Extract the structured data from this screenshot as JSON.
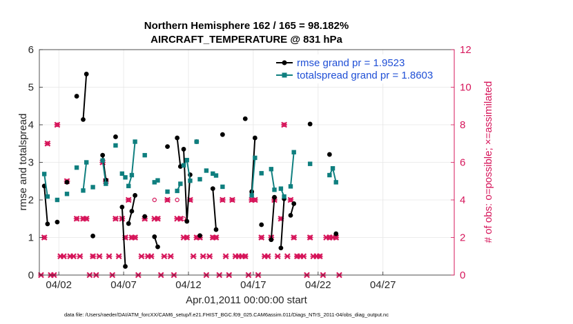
{
  "chart_data": {
    "type": "line",
    "title_line1": "Northern Hemisphere 162 / 165 = 98.182%",
    "title_line2": "AIRCRAFT_TEMPERATURE @ 831 hPa",
    "ylabel_left": "rmse and totalspread",
    "ylabel_right": "# of obs: o=possible; ×=assimilated",
    "xlabel": "Apr.01,2011 00:00:00 start",
    "footer": "data file: /Users/raeder/DAI/ATM_forcXX/CAM6_setup/f.e21.FHIST_BGC.f09_025.CAM6assim.011/Diags_NTrS_2011-04/obs_diag_output.nc",
    "xlim": [
      0.5,
      32.5
    ],
    "ylim_left": [
      0,
      6
    ],
    "ylim_right": [
      0,
      12
    ],
    "x_ticks": [
      {
        "x": 2,
        "label": "04/02"
      },
      {
        "x": 7,
        "label": "04/07"
      },
      {
        "x": 12,
        "label": "04/12"
      },
      {
        "x": 17,
        "label": "04/17"
      },
      {
        "x": 22,
        "label": "04/22"
      },
      {
        "x": 27,
        "label": "04/27"
      }
    ],
    "y_ticks_left": [
      0,
      1,
      2,
      3,
      4,
      5,
      6
    ],
    "y_ticks_right": [
      0,
      2,
      4,
      6,
      8,
      10,
      12
    ],
    "grid": true,
    "legend_position": "top-right",
    "colors": {
      "rmse": "#000000",
      "spread": "#0f7f7f",
      "obs": "#d6155a",
      "axis_right": "#d6155a",
      "legend_text": "#1f4fd6"
    },
    "series": [
      {
        "name": "rmse grand pr = 1.9523",
        "key": "rmse",
        "points": [
          [
            0.88,
            2.37
          ],
          [
            1.13,
            1.36
          ],
          [
            null,
            null
          ],
          [
            1.88,
            1.41
          ],
          [
            null,
            null
          ],
          [
            2.63,
            2.47
          ],
          [
            null,
            null
          ],
          [
            3.38,
            4.76
          ],
          [
            null,
            null
          ],
          [
            3.88,
            4.14
          ],
          [
            4.13,
            5.35
          ],
          [
            null,
            null
          ],
          [
            4.63,
            1.04
          ],
          [
            null,
            null
          ],
          [
            5.38,
            3.19
          ],
          [
            5.63,
            2.53
          ],
          [
            null,
            null
          ],
          [
            6.38,
            3.68
          ],
          [
            null,
            null
          ],
          [
            6.88,
            1.81
          ],
          [
            7.13,
            0.23
          ],
          [
            null,
            null
          ],
          [
            7.38,
            1.37
          ],
          [
            7.63,
            1.7
          ],
          [
            7.88,
            2.12
          ],
          [
            null,
            null
          ],
          [
            8.63,
            1.56
          ],
          [
            null,
            null
          ],
          [
            9.38,
            1.02
          ],
          [
            9.63,
            0.75
          ],
          [
            null,
            null
          ],
          [
            10.38,
            3.42
          ],
          [
            null,
            null
          ],
          [
            11.13,
            3.65
          ],
          [
            11.38,
            2.89
          ],
          [
            null,
            null
          ],
          [
            11.63,
            3.35
          ],
          [
            11.88,
            1.43
          ],
          [
            12.13,
            2.67
          ],
          [
            null,
            null
          ],
          [
            12.63,
            3.55
          ],
          [
            null,
            null
          ],
          [
            12.88,
            1.05
          ],
          [
            null,
            null
          ],
          [
            13.88,
            2.3
          ],
          [
            14.13,
            1.21
          ],
          [
            null,
            null
          ],
          [
            14.63,
            3.74
          ],
          [
            null,
            null
          ],
          [
            16.38,
            4.16
          ],
          [
            null,
            null
          ],
          [
            16.88,
            2.22
          ],
          [
            17.13,
            3.65
          ],
          [
            null,
            null
          ],
          [
            17.63,
            1.34
          ],
          [
            null,
            null
          ],
          [
            18.38,
            0.94
          ],
          [
            18.63,
            2.07
          ],
          [
            null,
            null
          ],
          [
            19.13,
            0.72
          ],
          [
            19.38,
            2.03
          ],
          [
            null,
            null
          ],
          [
            19.88,
            1.59
          ],
          [
            20.13,
            1.9
          ],
          [
            null,
            null
          ],
          [
            21.38,
            4.02
          ],
          [
            null,
            null
          ],
          [
            22.88,
            3.21
          ],
          [
            null,
            null
          ],
          [
            23.38,
            1.1
          ]
        ]
      },
      {
        "name": "totalspread grand pr = 1.8603",
        "key": "spread",
        "points": [
          [
            0.88,
            2.69
          ],
          [
            1.13,
            2.09
          ],
          [
            null,
            null
          ],
          [
            1.88,
            2.0
          ],
          [
            null,
            null
          ],
          [
            2.63,
            2.16
          ],
          [
            null,
            null
          ],
          [
            3.38,
            2.86
          ],
          [
            null,
            null
          ],
          [
            3.88,
            2.25
          ],
          [
            4.13,
            3.0
          ],
          [
            null,
            null
          ],
          [
            4.63,
            2.34
          ],
          [
            null,
            null
          ],
          [
            5.38,
            3.05
          ],
          [
            5.63,
            2.43
          ],
          [
            null,
            null
          ],
          [
            6.38,
            3.45
          ],
          [
            null,
            null
          ],
          [
            6.88,
            2.7
          ],
          [
            7.13,
            2.6
          ],
          [
            null,
            null
          ],
          [
            7.38,
            2.37
          ],
          [
            7.63,
            2.66
          ],
          [
            7.88,
            3.55
          ],
          [
            null,
            null
          ],
          [
            8.63,
            3.19
          ],
          [
            null,
            null
          ],
          [
            9.38,
            2.47
          ],
          [
            9.63,
            2.52
          ],
          [
            null,
            null
          ],
          [
            10.38,
            2.22
          ],
          [
            null,
            null
          ],
          [
            11.13,
            2.24
          ],
          [
            11.38,
            2.43
          ],
          [
            null,
            null
          ],
          [
            11.63,
            2.92
          ],
          [
            11.88,
            3.06
          ],
          [
            12.13,
            2.51
          ],
          [
            null,
            null
          ],
          [
            12.63,
            3.55
          ],
          [
            null,
            null
          ],
          [
            12.88,
            2.55
          ],
          [
            null,
            null
          ],
          [
            13.38,
            2.78
          ],
          [
            null,
            null
          ],
          [
            13.88,
            2.7
          ],
          [
            14.13,
            2.65
          ],
          [
            null,
            null
          ],
          [
            14.63,
            2.35
          ],
          [
            null,
            null
          ],
          [
            16.88,
            2.12
          ],
          [
            17.13,
            3.12
          ],
          [
            null,
            null
          ],
          [
            17.63,
            2.71
          ],
          [
            null,
            null
          ],
          [
            18.38,
            2.82
          ],
          [
            18.63,
            2.27
          ],
          [
            null,
            null
          ],
          [
            19.13,
            2.3
          ],
          [
            19.38,
            2.09
          ],
          [
            null,
            null
          ],
          [
            19.88,
            2.36
          ],
          [
            20.13,
            3.27
          ],
          [
            null,
            null
          ],
          [
            21.38,
            2.96
          ],
          [
            null,
            null
          ],
          [
            22.88,
            2.66
          ],
          [
            23.13,
            2.84
          ],
          [
            23.38,
            2.47
          ]
        ]
      }
    ],
    "obs_possible": [
      [
        0.88,
        2
      ],
      [
        1.13,
        7
      ],
      [
        1.88,
        8
      ],
      [
        2.63,
        5
      ],
      [
        3.38,
        3
      ],
      [
        3.88,
        3
      ],
      [
        4.13,
        3
      ],
      [
        4.63,
        1
      ],
      [
        5.38,
        6
      ],
      [
        5.63,
        5
      ],
      [
        6.38,
        3
      ],
      [
        6.88,
        3
      ],
      [
        7.13,
        2
      ],
      [
        7.38,
        4
      ],
      [
        7.63,
        2
      ],
      [
        7.88,
        2
      ],
      [
        8.63,
        3
      ],
      [
        9.38,
        4
      ],
      [
        9.63,
        3
      ],
      [
        10.38,
        4
      ],
      [
        11.13,
        4
      ],
      [
        11.38,
        3
      ],
      [
        11.63,
        3
      ],
      [
        11.88,
        2
      ],
      [
        12.13,
        4
      ],
      [
        12.63,
        2
      ],
      [
        12.88,
        2
      ],
      [
        13.88,
        2
      ],
      [
        14.13,
        2
      ],
      [
        14.63,
        4
      ],
      [
        15.38,
        4
      ],
      [
        16.38,
        1
      ],
      [
        16.88,
        4
      ],
      [
        17.13,
        4
      ],
      [
        17.63,
        2
      ],
      [
        18.38,
        2
      ],
      [
        18.63,
        4
      ],
      [
        19.13,
        3
      ],
      [
        19.38,
        8
      ],
      [
        19.88,
        4
      ],
      [
        20.13,
        2
      ],
      [
        21.38,
        2
      ],
      [
        22.88,
        2
      ],
      [
        23.38,
        2
      ],
      [
        20.38,
        1
      ],
      [
        22.13,
        1
      ]
    ],
    "obs_assimilated": [
      [
        0.63,
        0
      ],
      [
        0.88,
        2
      ],
      [
        1.13,
        7
      ],
      [
        1.38,
        0
      ],
      [
        1.63,
        0
      ],
      [
        1.88,
        8
      ],
      [
        2.13,
        1
      ],
      [
        2.38,
        1
      ],
      [
        2.63,
        5
      ],
      [
        2.88,
        1
      ],
      [
        3.13,
        1
      ],
      [
        3.38,
        3
      ],
      [
        3.63,
        1
      ],
      [
        3.88,
        3
      ],
      [
        4.13,
        3
      ],
      [
        4.38,
        0
      ],
      [
        4.63,
        1
      ],
      [
        4.88,
        0
      ],
      [
        5.13,
        1
      ],
      [
        5.38,
        6
      ],
      [
        5.63,
        5
      ],
      [
        5.88,
        1
      ],
      [
        6.13,
        0
      ],
      [
        6.38,
        3
      ],
      [
        6.63,
        1
      ],
      [
        6.88,
        3
      ],
      [
        7.13,
        2
      ],
      [
        7.38,
        4
      ],
      [
        7.63,
        2
      ],
      [
        7.88,
        2
      ],
      [
        8.13,
        0
      ],
      [
        8.38,
        1
      ],
      [
        8.63,
        3
      ],
      [
        8.88,
        1
      ],
      [
        9.13,
        1
      ],
      [
        9.38,
        3
      ],
      [
        9.63,
        3
      ],
      [
        9.88,
        0
      ],
      [
        10.13,
        1
      ],
      [
        10.38,
        4
      ],
      [
        10.63,
        1
      ],
      [
        10.88,
        0
      ],
      [
        11.13,
        3
      ],
      [
        11.38,
        3
      ],
      [
        11.63,
        2
      ],
      [
        11.88,
        2
      ],
      [
        12.13,
        4
      ],
      [
        12.38,
        1
      ],
      [
        12.63,
        2
      ],
      [
        12.88,
        2
      ],
      [
        13.13,
        1
      ],
      [
        13.38,
        0
      ],
      [
        13.63,
        1
      ],
      [
        13.88,
        2
      ],
      [
        14.13,
        2
      ],
      [
        14.38,
        0
      ],
      [
        14.63,
        4
      ],
      [
        14.88,
        1
      ],
      [
        15.13,
        0
      ],
      [
        15.38,
        4
      ],
      [
        15.63,
        1
      ],
      [
        15.88,
        1
      ],
      [
        16.13,
        1
      ],
      [
        16.38,
        1
      ],
      [
        16.63,
        0
      ],
      [
        16.88,
        4
      ],
      [
        17.13,
        4
      ],
      [
        17.38,
        0
      ],
      [
        17.63,
        2
      ],
      [
        17.88,
        1
      ],
      [
        18.13,
        1
      ],
      [
        18.38,
        2
      ],
      [
        18.63,
        4
      ],
      [
        18.88,
        1
      ],
      [
        19.13,
        3
      ],
      [
        19.38,
        8
      ],
      [
        19.63,
        1
      ],
      [
        19.88,
        4
      ],
      [
        20.13,
        2
      ],
      [
        20.38,
        1
      ],
      [
        20.63,
        1
      ],
      [
        20.88,
        1
      ],
      [
        21.13,
        0
      ],
      [
        21.38,
        2
      ],
      [
        21.63,
        1
      ],
      [
        21.88,
        1
      ],
      [
        22.13,
        1
      ],
      [
        22.38,
        0
      ],
      [
        22.63,
        2
      ],
      [
        22.88,
        2
      ],
      [
        23.13,
        2
      ],
      [
        23.38,
        2
      ],
      [
        23.63,
        0
      ]
    ]
  }
}
